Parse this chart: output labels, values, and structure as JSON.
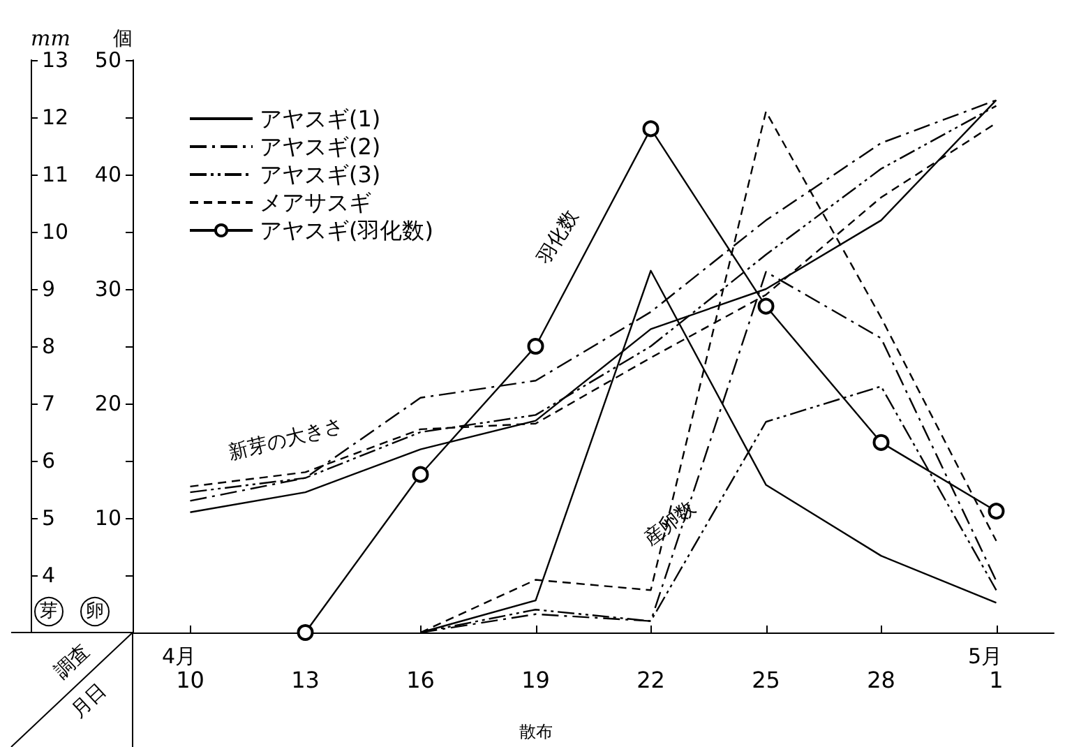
{
  "chart_data": {
    "type": "line",
    "categories": [
      "10",
      "13",
      "16",
      "19",
      "22",
      "25",
      "28",
      "1"
    ],
    "ylabel": "mm",
    "y2label": "個",
    "ylim": [
      3,
      13
    ],
    "yticks": [
      4,
      5,
      6,
      7,
      8,
      9,
      10,
      11,
      12,
      13
    ],
    "y2lim": [
      0,
      50
    ],
    "y2ticks": [
      {
        "value": 5,
        "label": null
      },
      10,
      {
        "value": 15,
        "label": null
      },
      20,
      {
        "value": 25,
        "label": null
      },
      30,
      {
        "value": 35,
        "label": null
      },
      40,
      {
        "value": 45,
        "label": null
      },
      50
    ],
    "grid": false,
    "legend": "top left",
    "marker": "none",
    "annotations": [
      "4月",
      "5月",
      "散布",
      "調査",
      "月日",
      "芽",
      "卵",
      "新芽の大きさ",
      "羽化数",
      "産卵数"
    ],
    "series": [
      {
        "name": "アヤスギ(1)",
        "color": "#000000",
        "line_style": "solid",
        "values": [
          5.1,
          5.45,
          6.2,
          6.7,
          8.3,
          9.0,
          10.2,
          12.3
        ]
      },
      {
        "name": "アヤスギ(2)",
        "color": "#000000",
        "line_style": "dashdot",
        "values": [
          5.3,
          5.7,
          7.1,
          7.4,
          8.6,
          10.2,
          11.55,
          12.3
        ]
      },
      {
        "name": "アヤスギ(3)",
        "color": "#000000",
        "line_style": "dashdotdot",
        "values": [
          5.45,
          5.7,
          6.5,
          6.8,
          8.0,
          9.6,
          11.1,
          12.2
        ]
      },
      {
        "name": "メアサスギ",
        "color": "#000000",
        "line_style": "dashed",
        "values": [
          5.55,
          5.8,
          6.55,
          6.65,
          7.8,
          8.9,
          10.6,
          11.9
        ]
      },
      {
        "name": "アヤスギ(羽化数)",
        "color": "#000000",
        "line_style": "solid",
        "marker": "circle",
        "axis": "y2",
        "values": [
          null,
          0,
          13.8,
          25,
          44,
          28.5,
          16.6,
          10.6
        ]
      },
      {
        "color": "#000000",
        "line_style": "solid",
        "axis": "y2",
        "values": [
          null,
          null,
          0,
          2.8,
          31.6,
          12.9,
          6.7,
          2.6
        ]
      },
      {
        "color": "#000000",
        "line_style": "dashdot",
        "axis": "y2",
        "values": [
          null,
          null,
          0,
          1.6,
          1.0,
          31.5,
          25.7,
          4.5
        ]
      },
      {
        "color": "#000000",
        "line_style": "dashdotdot",
        "axis": "y2",
        "values": [
          null,
          null,
          0,
          2.0,
          1.0,
          18.4,
          21.5,
          3.7
        ]
      },
      {
        "color": "#000000",
        "line_style": "dashed",
        "axis": "y2",
        "values": [
          null,
          null,
          0,
          4.6,
          3.7,
          45.5,
          27.5,
          8.0
        ]
      }
    ]
  }
}
